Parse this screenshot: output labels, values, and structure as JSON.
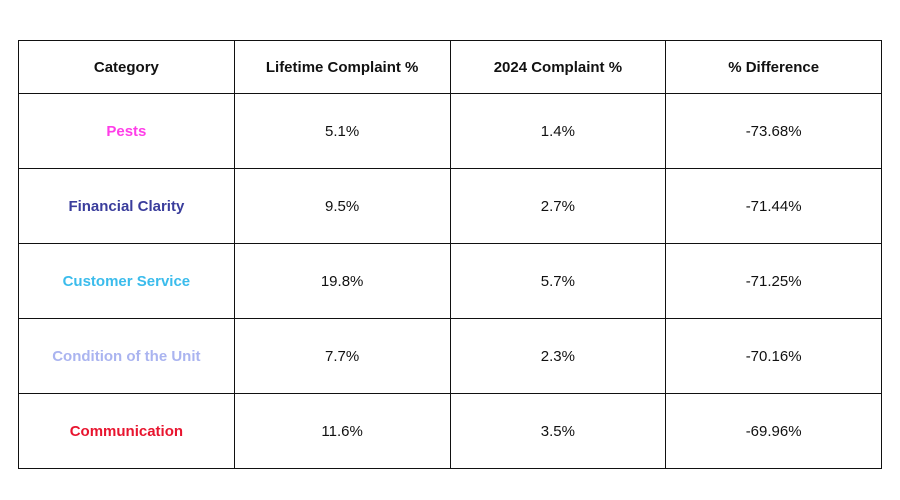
{
  "chart_data": {
    "type": "table",
    "columns": [
      "Category",
      "Lifetime Complaint %",
      "2024 Complaint %",
      "% Difference"
    ],
    "rows": [
      {
        "category": "Pests",
        "lifetime": "5.1%",
        "y2024": "1.4%",
        "difference": "-73.68%",
        "color": "#ff3de8"
      },
      {
        "category": "Financial Clarity",
        "lifetime": "9.5%",
        "y2024": "2.7%",
        "difference": "-71.44%",
        "color": "#3a3d9c"
      },
      {
        "category": "Customer Service",
        "lifetime": "19.8%",
        "y2024": "5.7%",
        "difference": "-71.25%",
        "color": "#3bbcec"
      },
      {
        "category": "Condition of the Unit",
        "lifetime": "7.7%",
        "y2024": "2.3%",
        "difference": "-70.16%",
        "color": "#aab4f0"
      },
      {
        "category": "Communication",
        "lifetime": "11.6%",
        "y2024": "3.5%",
        "difference": "-69.96%",
        "color": "#e8152f"
      }
    ]
  }
}
